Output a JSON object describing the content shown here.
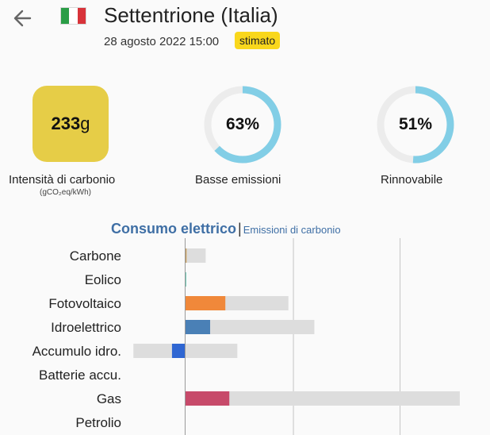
{
  "header": {
    "zone_name": "Settentrione (Italia)",
    "datetime": "28 agosto 2022 15:00",
    "badge": "stimato",
    "flag_icon": "italy-flag-icon",
    "back_icon": "arrow-left-icon"
  },
  "metrics": {
    "carbon_value": "233",
    "carbon_unit": "g",
    "carbon_label": "Intensità di carbonio",
    "carbon_sublabel": "(gCO₂eq/kWh)",
    "low_emission_value": "63%",
    "low_emission_label": "Basse emissioni",
    "low_emission_fraction": 0.63,
    "renewable_value": "51%",
    "renewable_label": "Rinnovabile",
    "renewable_fraction": 0.51
  },
  "tabs": {
    "active": "Consumo elettrico",
    "separator": "|",
    "inactive": "Emissioni di carbonio"
  },
  "colors": {
    "carbon_box": "#e6cd47",
    "ring": "#82cee6",
    "ring_track": "#ececec",
    "badge": "#f9d71c",
    "tab": "#3f6fa5"
  },
  "chart_data": {
    "type": "bar",
    "categories": [
      "Carbone",
      "Eolico",
      "Fotovoltaico",
      "Idroelettrico",
      "Accumulo idro.",
      "Batterie accu.",
      "Gas",
      "Petrolio"
    ],
    "series": [
      {
        "values": [
          18,
          2,
          505,
          314,
          -165,
          0,
          555,
          0
        ],
        "colors": [
          "#c9a060",
          "#74cdb9",
          "#f0883a",
          "#4a80b6",
          "#2f66d2",
          "#b0b0b0",
          "#c74a6a",
          "#867d66"
        ]
      },
      {
        "values": [
          258,
          4,
          1297,
          1623,
          656,
          0,
          3450,
          0
        ]
      }
    ],
    "xlim": [
      -650,
      3450
    ],
    "gridlines": [
      0,
      1360,
      2700
    ]
  }
}
